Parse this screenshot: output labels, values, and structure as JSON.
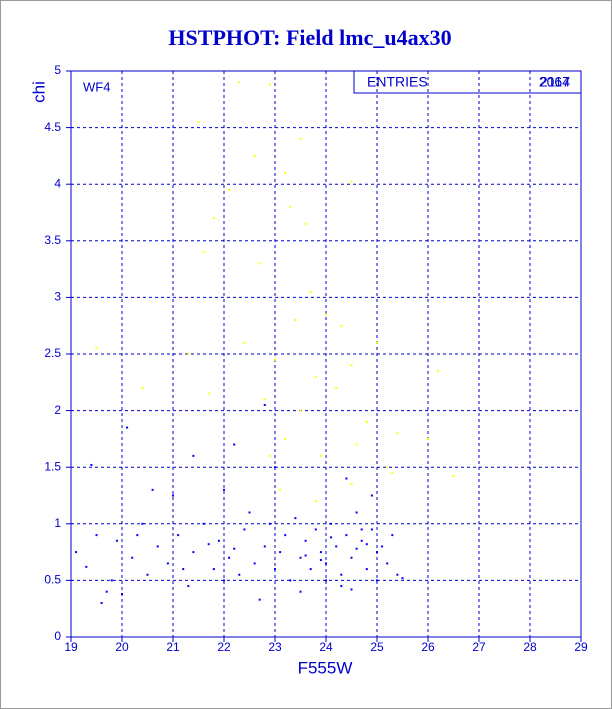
{
  "chart_data": {
    "type": "scatter",
    "title": "HSTPHOT: Field lmc_u4ax30",
    "xlabel": "F555W",
    "ylabel": "chi",
    "panel_label": "WF4",
    "stats": {
      "label": "ENTRIES",
      "values": [
        2064,
        2117
      ]
    },
    "xlim": [
      19,
      29
    ],
    "ylim": [
      0,
      5
    ],
    "xticks": [
      19,
      20,
      21,
      22,
      23,
      24,
      25,
      26,
      27,
      28,
      29
    ],
    "yticks": [
      0,
      0.5,
      1,
      1.5,
      2,
      2.5,
      3,
      3.5,
      4,
      4.5,
      5
    ],
    "grid": true,
    "series": [
      {
        "color": "#0000ff",
        "x": [
          19.1,
          19.3,
          19.5,
          19.6,
          19.8,
          19.9,
          20.0,
          20.2,
          20.4,
          20.5,
          20.7,
          20.9,
          21.0,
          21.1,
          21.3,
          21.4,
          21.6,
          21.8,
          21.9,
          22.0,
          22.1,
          22.3,
          22.4,
          22.5,
          22.6,
          22.7,
          22.8,
          22.9,
          23.0,
          23.1,
          23.2,
          23.3,
          23.4,
          23.5,
          23.6,
          23.7,
          23.8,
          23.9,
          24.0,
          24.1,
          24.2,
          24.3,
          24.4,
          24.5,
          24.6,
          24.7,
          24.8,
          24.9,
          25.0,
          25.1,
          25.2,
          25.3,
          25.4,
          24.3,
          24.5,
          24.1,
          24.6,
          24.8,
          23.6,
          23.9,
          22.2,
          21.7,
          20.1,
          19.4,
          20.6,
          21.4,
          22.2,
          22.8,
          23.0,
          24.4,
          24.9,
          19.7,
          20.3,
          21.2,
          22.0,
          23.5,
          24.0,
          25.0,
          25.5,
          24.7
        ],
        "values": [
          0.75,
          0.62,
          0.9,
          0.3,
          0.5,
          0.85,
          0.38,
          0.7,
          1.0,
          0.55,
          0.8,
          0.65,
          1.25,
          0.9,
          0.45,
          0.75,
          1.0,
          0.6,
          0.85,
          1.3,
          0.7,
          0.55,
          0.95,
          1.1,
          0.65,
          0.33,
          0.8,
          1.0,
          0.6,
          0.75,
          0.9,
          0.5,
          1.05,
          0.7,
          0.85,
          0.6,
          0.95,
          0.75,
          0.65,
          1.0,
          0.8,
          0.55,
          0.9,
          0.7,
          1.1,
          0.85,
          0.6,
          0.95,
          0.75,
          0.8,
          0.65,
          0.9,
          0.55,
          0.45,
          0.42,
          0.88,
          0.78,
          0.82,
          0.72,
          0.68,
          0.78,
          0.82,
          1.85,
          1.52,
          1.3,
          1.6,
          1.7,
          2.05,
          1.5,
          1.4,
          1.25,
          0.4,
          0.9,
          0.6,
          0.5,
          0.4,
          0.5,
          0.5,
          0.52,
          0.95
        ]
      },
      {
        "color": "#ffff00",
        "x": [
          22.3,
          22.9,
          21.5,
          22.6,
          23.2,
          23.5,
          24.5,
          21.8,
          22.1,
          23.3,
          23.6,
          21.6,
          22.7,
          23.7,
          24.0,
          22.4,
          23.4,
          24.3,
          21.3,
          20.4,
          23.0,
          23.8,
          24.5,
          25.0,
          26.2,
          21.7,
          22.8,
          23.5,
          24.2,
          24.8,
          25.4,
          23.2,
          23.9,
          24.6,
          25.2,
          26.0,
          26.5,
          23.1,
          23.8,
          24.5,
          25.3,
          22.9,
          19.5
        ],
        "values": [
          4.9,
          4.88,
          4.55,
          4.25,
          4.1,
          4.4,
          4.02,
          3.7,
          3.95,
          3.8,
          3.65,
          3.4,
          3.3,
          3.05,
          2.85,
          2.6,
          2.8,
          2.75,
          2.5,
          2.2,
          2.45,
          2.3,
          2.4,
          2.6,
          2.35,
          2.15,
          2.1,
          2.0,
          2.2,
          1.9,
          1.8,
          1.75,
          1.6,
          1.7,
          1.5,
          1.75,
          1.42,
          1.3,
          1.2,
          1.35,
          1.45,
          1.6,
          2.55
        ]
      }
    ]
  }
}
